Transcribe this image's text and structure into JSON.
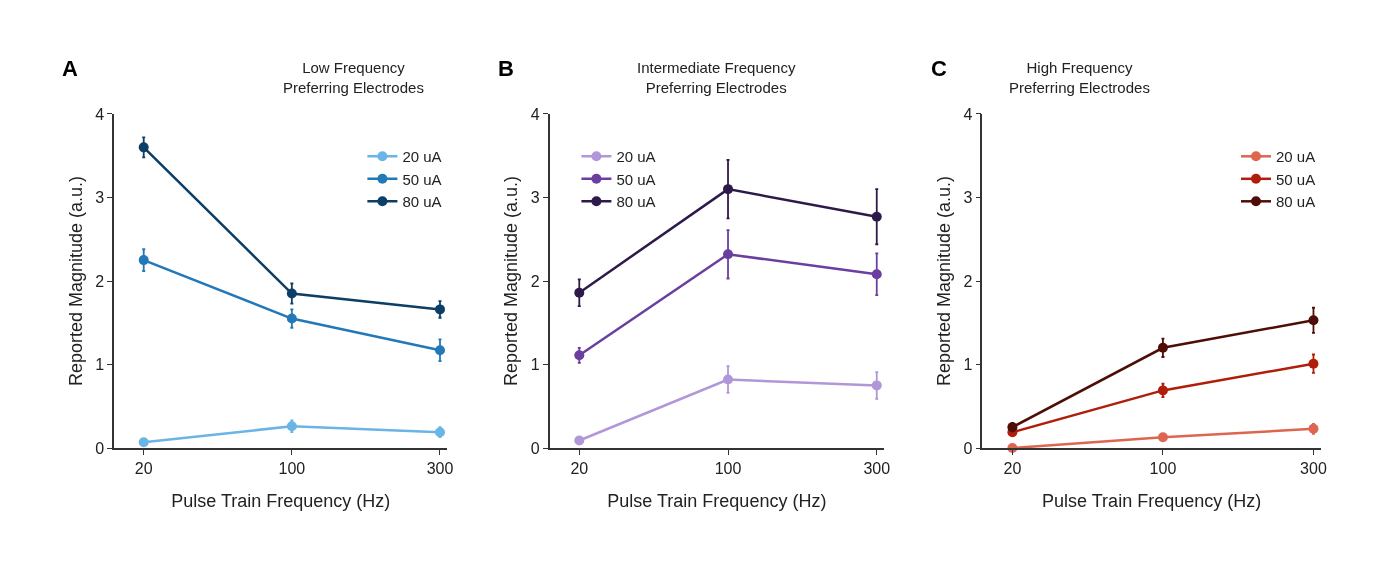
{
  "chart_data": [
    {
      "type": "line",
      "title": "Low Frequency\nPreferring Electrodes",
      "annotations": [
        "A"
      ],
      "xlabel": "Pulse Train Frequency (Hz)",
      "ylabel": "Reported Magnitude (a.u.)",
      "categories": [
        "20",
        "100",
        "300"
      ],
      "ylim": [
        0,
        4
      ],
      "yticks": [
        0,
        1,
        2,
        3,
        4
      ],
      "legend": "top right",
      "marker": "circle",
      "line_style": "solid",
      "series": [
        {
          "name": "20 uA",
          "color": "#6ab4e6",
          "values": [
            0.07,
            0.26,
            0.19
          ],
          "errors": [
            0.04,
            0.07,
            0.06
          ]
        },
        {
          "name": "50 uA",
          "color": "#2379b8",
          "values": [
            2.25,
            1.55,
            1.17
          ],
          "errors": [
            0.13,
            0.11,
            0.13
          ]
        },
        {
          "name": "80 uA",
          "color": "#0d3f66",
          "values": [
            3.6,
            1.85,
            1.66
          ],
          "errors": [
            0.12,
            0.12,
            0.1
          ]
        }
      ]
    },
    {
      "type": "line",
      "title": "Intermediate Frequency\nPreferring Electrodes",
      "annotations": [
        "B"
      ],
      "xlabel": "Pulse Train Frequency (Hz)",
      "ylabel": "Reported Magnitude (a.u.)",
      "categories": [
        "20",
        "100",
        "300"
      ],
      "ylim": [
        0,
        4
      ],
      "yticks": [
        0,
        1,
        2,
        3,
        4
      ],
      "legend": "top left",
      "marker": "circle",
      "line_style": "solid",
      "series": [
        {
          "name": "20 uA",
          "color": "#b197d8",
          "values": [
            0.09,
            0.82,
            0.75
          ],
          "errors": [
            0.04,
            0.16,
            0.16
          ]
        },
        {
          "name": "50 uA",
          "color": "#6a3fa0",
          "values": [
            1.11,
            2.32,
            2.08
          ],
          "errors": [
            0.09,
            0.29,
            0.25
          ]
        },
        {
          "name": "80 uA",
          "color": "#2e1a4a",
          "values": [
            1.86,
            3.1,
            2.77
          ],
          "errors": [
            0.16,
            0.35,
            0.33
          ]
        }
      ]
    },
    {
      "type": "line",
      "title": "High Frequency\nPreferring Electrodes",
      "annotations": [
        "C"
      ],
      "xlabel": "Pulse Train Frequency (Hz)",
      "ylabel": "Reported Magnitude (a.u.)",
      "categories": [
        "20",
        "100",
        "300"
      ],
      "ylim": [
        0,
        4
      ],
      "yticks": [
        0,
        1,
        2,
        3,
        4
      ],
      "legend": "top right",
      "marker": "circle",
      "line_style": "solid",
      "series": [
        {
          "name": "20 uA",
          "color": "#dd6650",
          "values": [
            0.0,
            0.13,
            0.23
          ],
          "errors": [
            0.01,
            0.04,
            0.06
          ]
        },
        {
          "name": "50 uA",
          "color": "#b01e0a",
          "values": [
            0.19,
            0.69,
            1.01
          ],
          "errors": [
            0.04,
            0.08,
            0.11
          ]
        },
        {
          "name": "80 uA",
          "color": "#4e0e05",
          "values": [
            0.25,
            1.2,
            1.53
          ],
          "errors": [
            0.05,
            0.11,
            0.15
          ]
        }
      ]
    }
  ]
}
